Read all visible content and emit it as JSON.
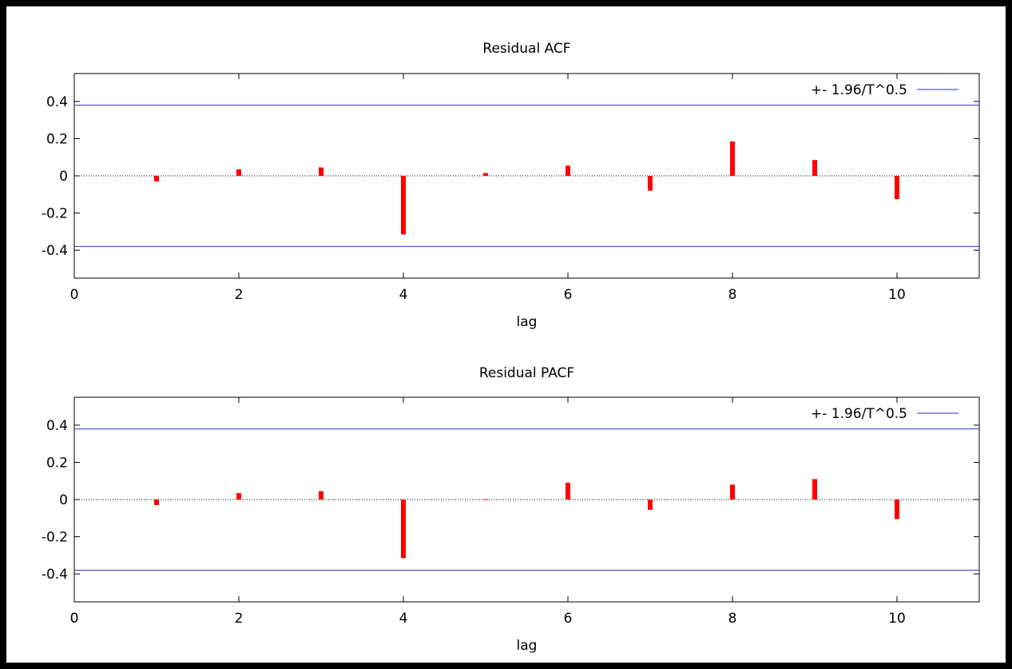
{
  "chart_data": [
    {
      "type": "bar",
      "title": "Residual ACF",
      "xlabel": "lag",
      "ylabel": "",
      "xlim": [
        0,
        11
      ],
      "ylim": [
        -0.55,
        0.55
      ],
      "xticks": [
        "0",
        "2",
        "4",
        "6",
        "8",
        "10"
      ],
      "yticks": [
        "0.4",
        "0.2",
        "0",
        "-0.2",
        "-0.4"
      ],
      "grid": false,
      "legend_position": "top-right",
      "x": [
        1,
        2,
        3,
        4,
        5,
        6,
        7,
        8,
        9,
        10
      ],
      "series": [
        {
          "name": "",
          "color": "#ff0000",
          "values": [
            -0.03,
            0.035,
            0.045,
            -0.315,
            0.015,
            0.055,
            -0.08,
            0.185,
            0.085,
            -0.125
          ]
        }
      ],
      "bands": [
        {
          "name": "+- 1.96/T^0.5",
          "color": "#3333cc",
          "values": [
            0.38,
            -0.38
          ]
        }
      ]
    },
    {
      "type": "bar",
      "title": "Residual PACF",
      "xlabel": "lag",
      "ylabel": "",
      "xlim": [
        0,
        11
      ],
      "ylim": [
        -0.55,
        0.55
      ],
      "xticks": [
        "0",
        "2",
        "4",
        "6",
        "8",
        "10"
      ],
      "yticks": [
        "0.4",
        "0.2",
        "0",
        "-0.2",
        "-0.4"
      ],
      "grid": false,
      "legend_position": "top-right",
      "x": [
        1,
        2,
        3,
        4,
        5,
        6,
        7,
        8,
        9,
        10
      ],
      "series": [
        {
          "name": "",
          "color": "#ff0000",
          "values": [
            -0.03,
            0.035,
            0.045,
            -0.315,
            0.002,
            0.09,
            -0.055,
            0.08,
            0.11,
            -0.105
          ]
        }
      ],
      "bands": [
        {
          "name": "+- 1.96/T^0.5",
          "color": "#3333cc",
          "values": [
            0.38,
            -0.38
          ]
        }
      ]
    }
  ]
}
